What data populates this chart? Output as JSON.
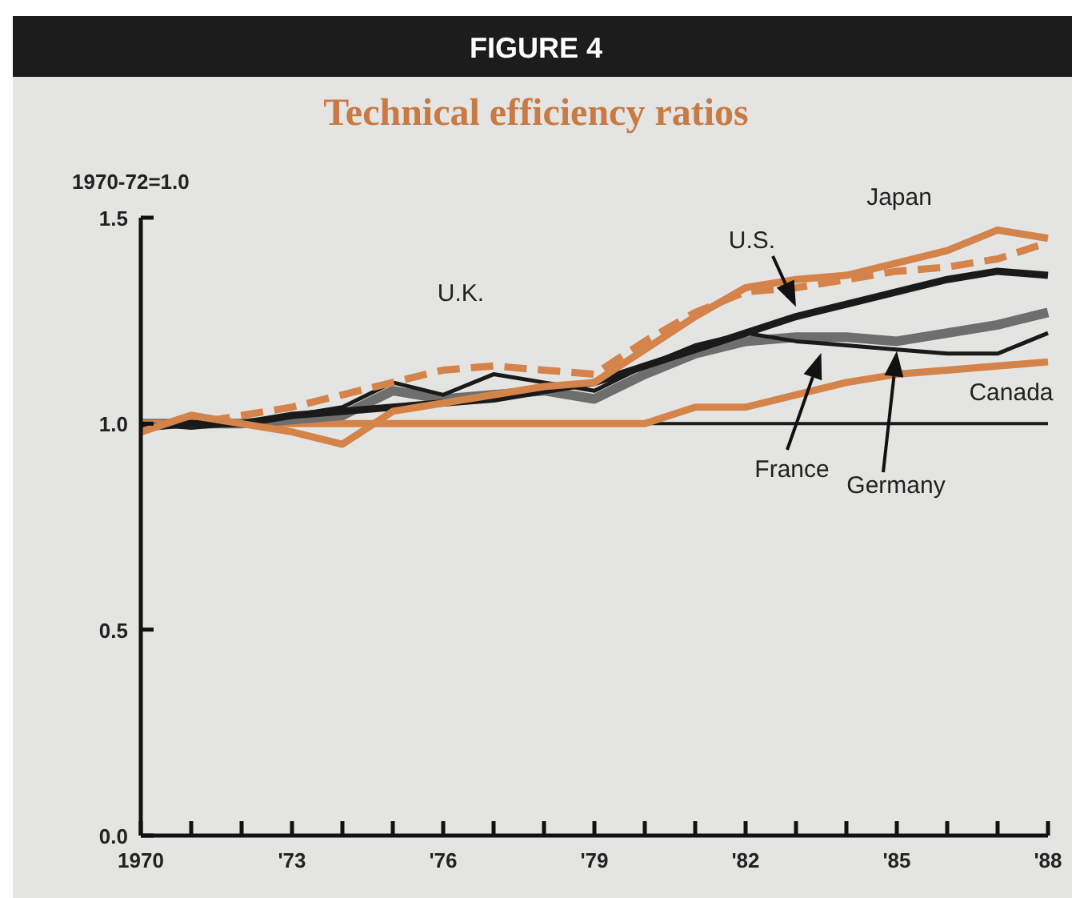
{
  "chart_data": {
    "type": "line",
    "title": "FIGURE 4",
    "subtitle": "Technical efficiency ratios",
    "ylabel": "1970-72=1.0",
    "x": [
      1970,
      1971,
      1972,
      1973,
      1974,
      1975,
      1976,
      1977,
      1978,
      1979,
      1980,
      1981,
      1982,
      1983,
      1984,
      1985,
      1986,
      1987,
      1988
    ],
    "xlim": [
      1970,
      1988
    ],
    "xticks": [
      {
        "value": 1970,
        "label": "1970"
      },
      {
        "value": 1971,
        "label": null
      },
      {
        "value": 1972,
        "label": null
      },
      {
        "value": 1973,
        "label": "'73"
      },
      {
        "value": 1974,
        "label": null
      },
      {
        "value": 1975,
        "label": null
      },
      {
        "value": 1976,
        "label": "'76"
      },
      {
        "value": 1977,
        "label": null
      },
      {
        "value": 1978,
        "label": null
      },
      {
        "value": 1979,
        "label": "'79"
      },
      {
        "value": 1980,
        "label": null
      },
      {
        "value": 1981,
        "label": null
      },
      {
        "value": 1982,
        "label": "'82"
      },
      {
        "value": 1983,
        "label": null
      },
      {
        "value": 1984,
        "label": null
      },
      {
        "value": 1985,
        "label": "'85"
      },
      {
        "value": 1986,
        "label": null
      },
      {
        "value": 1987,
        "label": null
      },
      {
        "value": 1988,
        "label": "'88"
      }
    ],
    "ylim": [
      0,
      1.5
    ],
    "yticks": [
      {
        "value": 0,
        "label": "0.0"
      },
      {
        "value": 0.5,
        "label": "0.5"
      },
      {
        "value": 1,
        "label": "1.0"
      },
      {
        "value": 1.5,
        "label": "1.5"
      }
    ],
    "grid": false,
    "ref_lines": [
      {
        "axis": "y",
        "value": 1,
        "color": "#1a1a1a"
      }
    ],
    "series": [
      {
        "name": "Canada",
        "color": "#d4844a",
        "values": [
          0.98,
          1.02,
          1.0,
          1.0,
          1.0,
          1.0,
          1.0,
          1.0,
          1.0,
          1.0,
          1.0,
          1.04,
          1.04,
          1.07,
          1.1,
          1.12,
          1.13,
          1.14,
          1.15
        ]
      },
      {
        "name": "Germany",
        "color": "#6e6e6e",
        "values": [
          1.0,
          1.0,
          1.0,
          1.01,
          1.02,
          1.08,
          1.06,
          1.07,
          1.08,
          1.06,
          1.12,
          1.17,
          1.2,
          1.21,
          1.21,
          1.2,
          1.22,
          1.24,
          1.27
        ]
      },
      {
        "name": "France",
        "color": "#1a1a1a",
        "values": [
          1.0,
          0.99,
          1.0,
          1.02,
          1.04,
          1.1,
          1.07,
          1.12,
          1.1,
          1.08,
          1.14,
          1.19,
          1.22,
          1.2,
          1.19,
          1.18,
          1.17,
          1.17,
          1.22
        ]
      },
      {
        "name": "U.K.",
        "color": "#d4844a",
        "line_style": "dashed",
        "values": [
          1.0,
          1.0,
          1.02,
          1.04,
          1.07,
          1.1,
          1.13,
          1.14,
          1.13,
          1.12,
          1.2,
          1.27,
          1.32,
          1.33,
          1.35,
          1.37,
          1.38,
          1.4,
          1.44
        ]
      },
      {
        "name": "U.S.",
        "color": "#1a1a1a",
        "values": [
          0.99,
          1.0,
          1.0,
          1.02,
          1.03,
          1.04,
          1.05,
          1.06,
          1.08,
          1.1,
          1.14,
          1.18,
          1.22,
          1.26,
          1.29,
          1.32,
          1.35,
          1.37,
          1.36
        ]
      },
      {
        "name": "Japan",
        "color": "#d4844a",
        "values": [
          0.98,
          1.02,
          1.0,
          0.98,
          0.95,
          1.03,
          1.05,
          1.07,
          1.09,
          1.1,
          1.18,
          1.26,
          1.33,
          1.35,
          1.36,
          1.39,
          1.42,
          1.47,
          1.45
        ]
      }
    ]
  }
}
